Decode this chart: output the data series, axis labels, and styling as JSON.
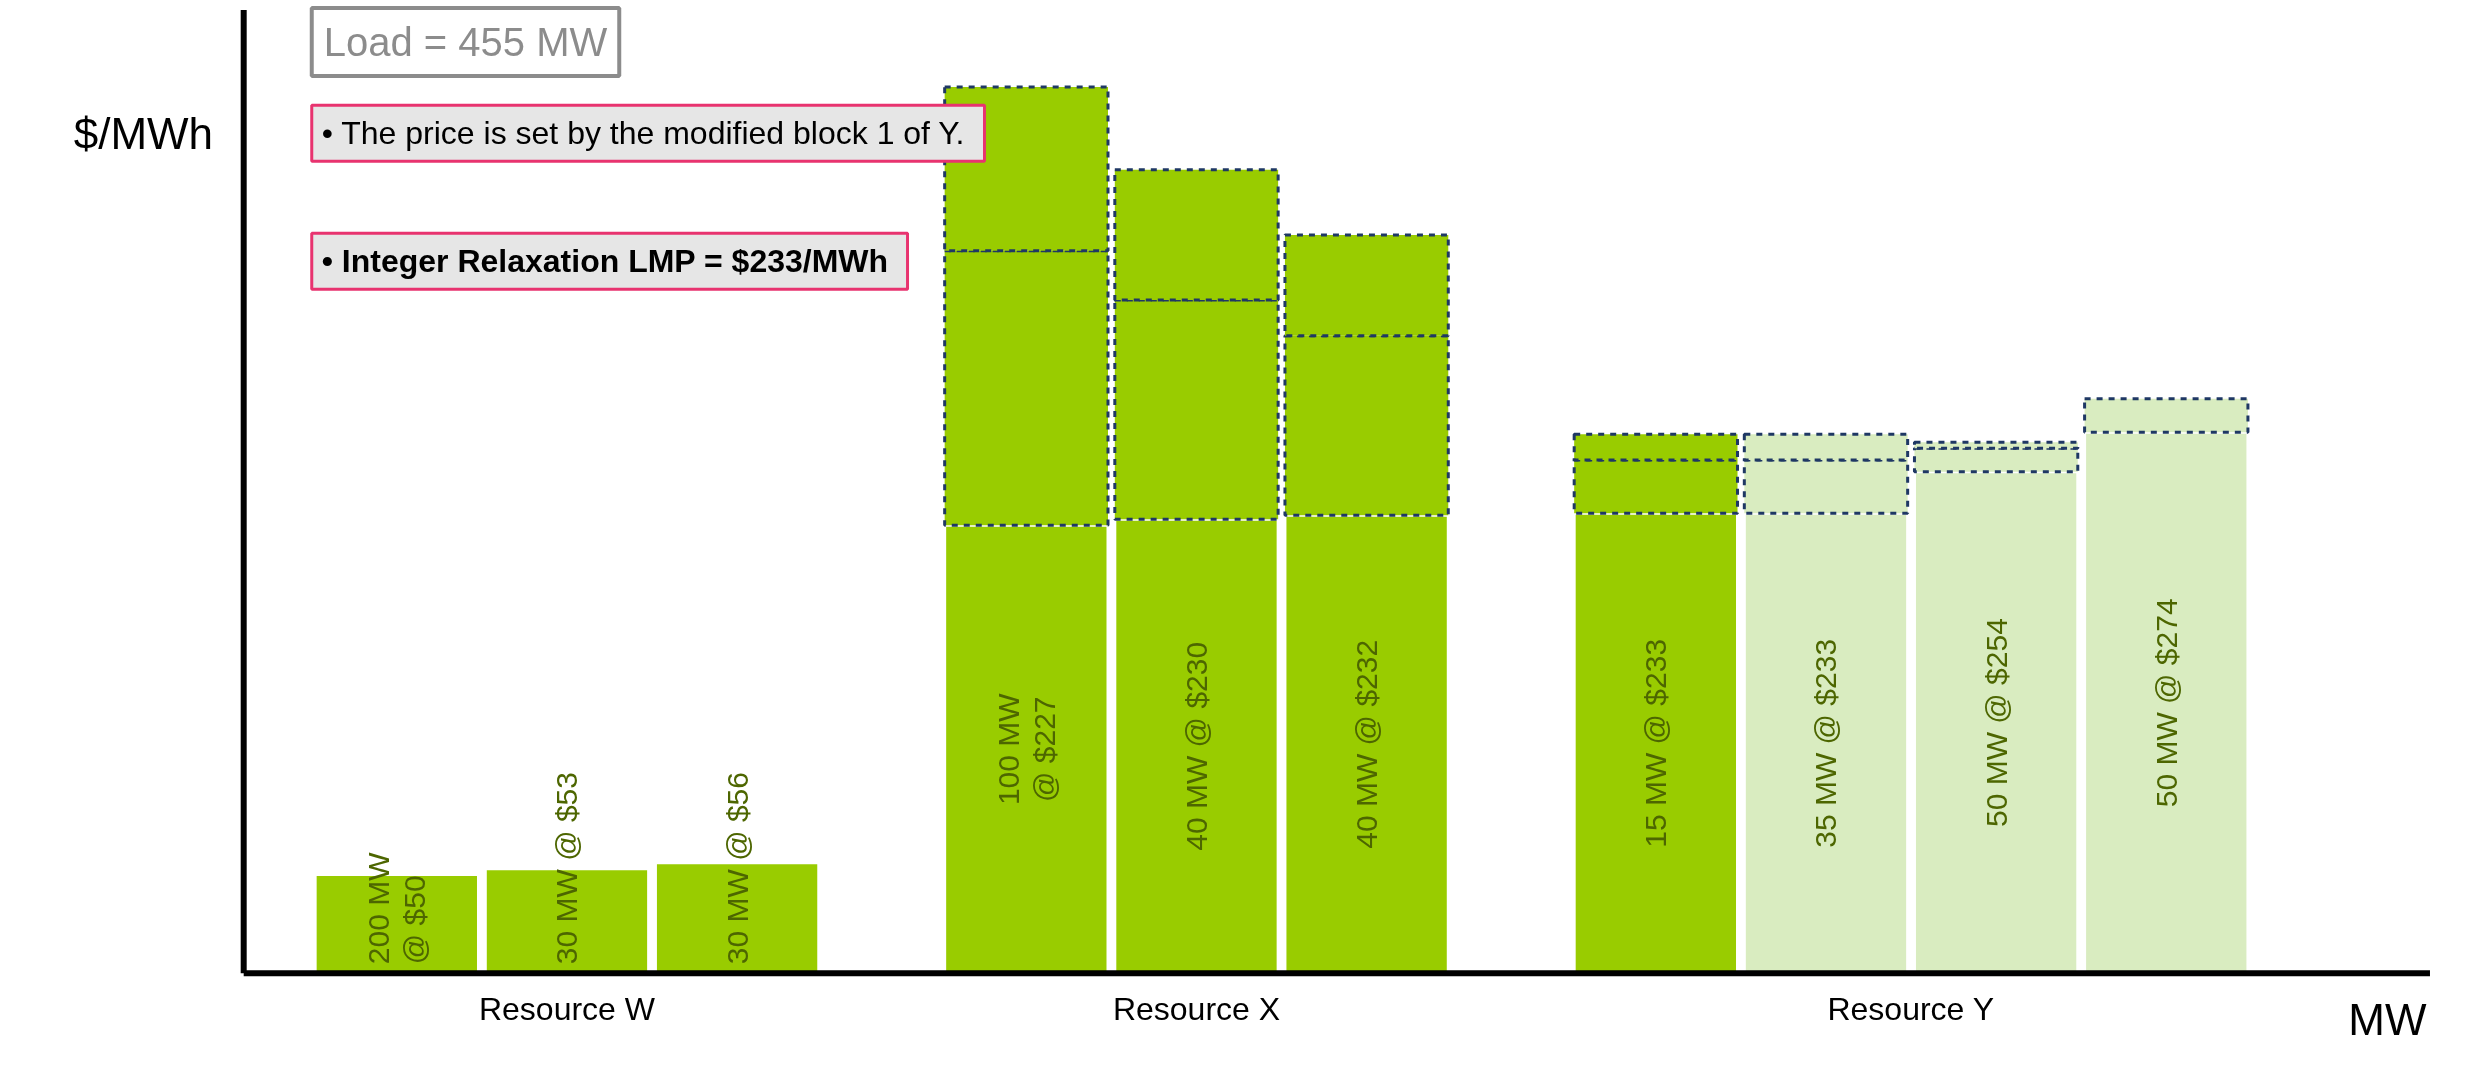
{
  "chart_data": {
    "type": "bar",
    "stacked": true,
    "xlabel": "MW",
    "ylabel": "$/MWh",
    "tick_labels": false,
    "categories": [
      null,
      null,
      null,
      null,
      null,
      null,
      null,
      null,
      null,
      null
    ],
    "series": [
      {
        "name": "Resource W",
        "color": "#99cc00",
        "values": [
          50,
          53,
          56,
          null,
          null,
          null,
          null,
          null,
          null,
          null
        ],
        "value_labels": [
          "200 MW\n@ $50",
          "30 MW @ $53",
          "30 MW @ $56",
          null,
          null,
          null,
          null,
          null,
          null,
          null
        ]
      },
      {
        "name": "Resource X",
        "color": "#99cc00",
        "values": [
          null,
          null,
          null,
          227,
          230,
          232,
          null,
          null,
          null,
          null
        ],
        "value_labels": [
          null,
          null,
          null,
          "100 MW\n@ $227",
          "40 MW @ $230",
          "40 MW @ $232",
          null,
          null,
          null,
          null
        ]
      },
      {
        "name": "Resource Y",
        "color": "#d9ecc0",
        "colors": [
          null,
          null,
          null,
          null,
          null,
          null,
          "#99cc00",
          null,
          null,
          null
        ],
        "values": [
          null,
          null,
          null,
          null,
          null,
          null,
          233,
          233,
          254,
          274
        ],
        "value_labels": [
          null,
          null,
          null,
          null,
          null,
          null,
          "15 MW @ $233",
          "35 MW @ $233",
          "50 MW @ $254",
          "50 MW @ $274"
        ]
      },
      {
        "color": "#99cc00",
        "colors": [
          null,
          null,
          null,
          null,
          null,
          null,
          null,
          "#d9ecc0",
          "#d9ecc0",
          "#d9ecc0"
        ],
        "line_style": "dashed",
        "values": [
          null,
          null,
          null,
          139,
          111,
          91,
          27,
          27,
          12,
          17
        ]
      },
      {
        "color": "#99cc00",
        "colors": [
          null,
          null,
          null,
          null,
          null,
          null,
          null,
          "#d9ecc0",
          "#d9ecc0",
          null
        ],
        "line_style": "dashed",
        "values": [
          null,
          null,
          null,
          83,
          66,
          51,
          13,
          13,
          3,
          null
        ]
      }
    ],
    "annotations": [
      "Load = 455 MW",
      "•  The price is set by the modified block 1 of Y.",
      "•  Integer Relaxation LMP = $233/MWh"
    ]
  }
}
